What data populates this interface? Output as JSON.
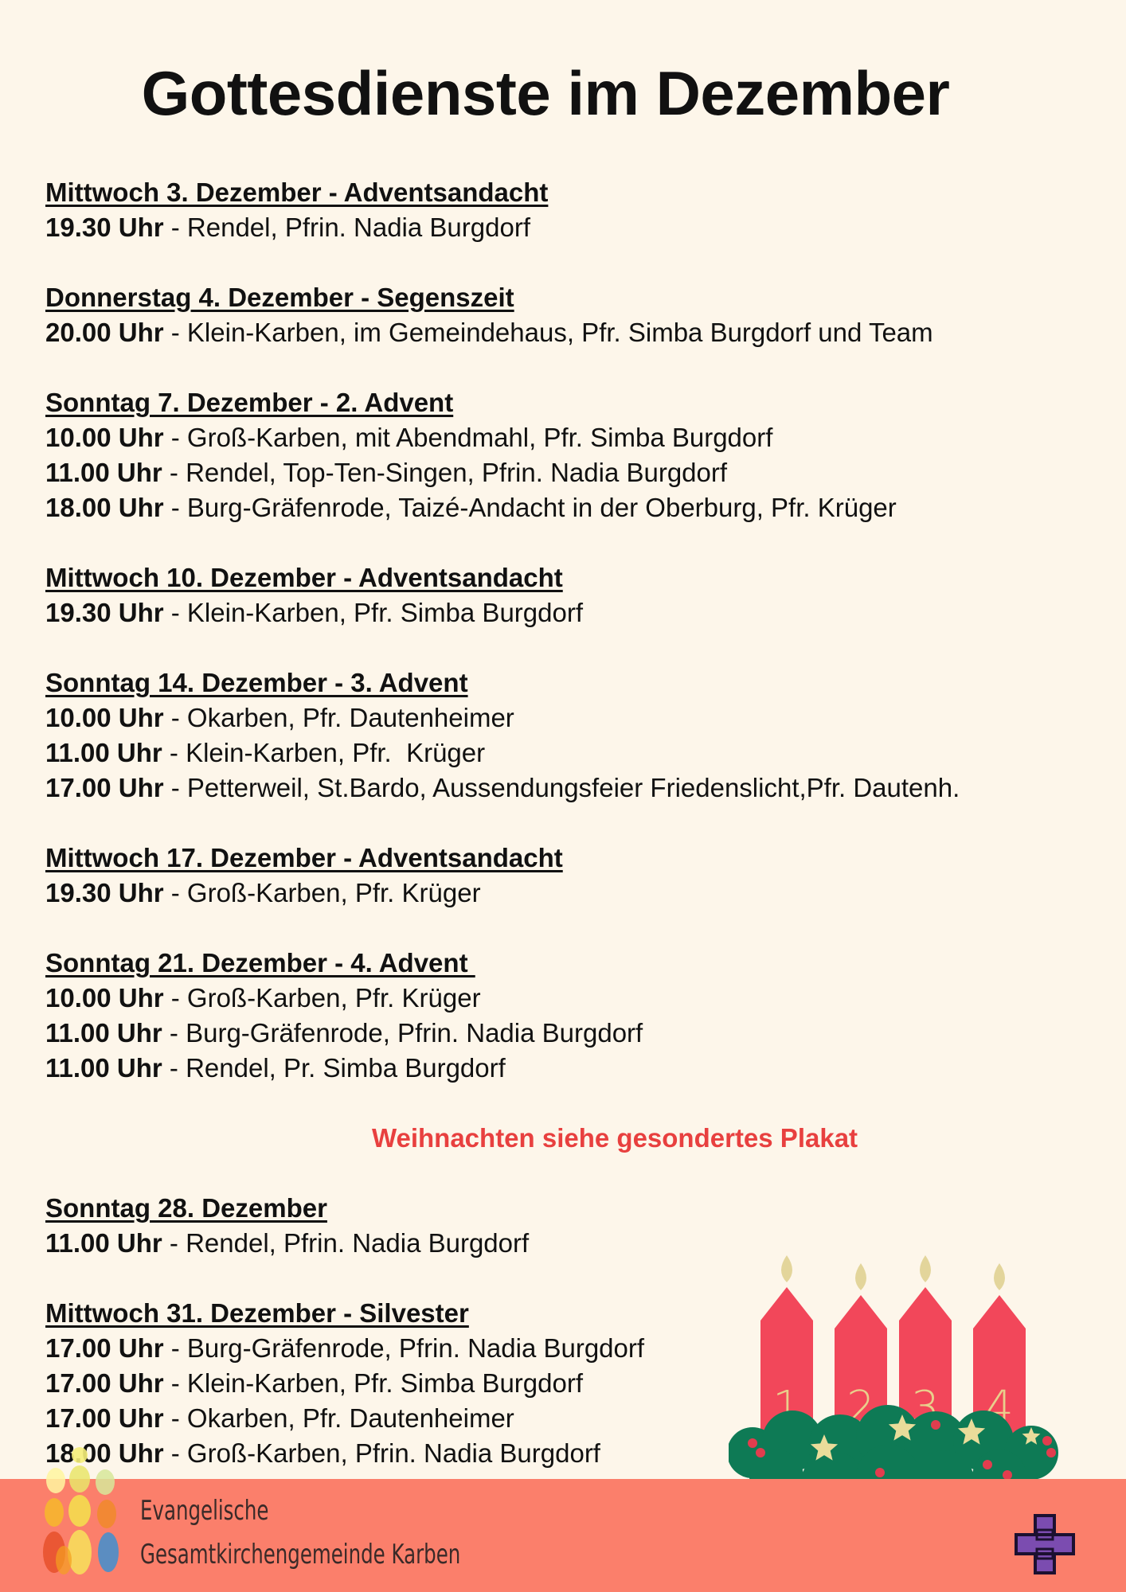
{
  "title": "Gottesdienste im Dezember",
  "sections": [
    {
      "heading": "Mittwoch 3. Dezember - Adventsandacht",
      "services": [
        {
          "time": "19.30 Uhr",
          "details": " - Rendel, Pfrin. Nadia Burgdorf"
        }
      ]
    },
    {
      "heading": "Donnerstag 4. Dezember - Segenszeit",
      "services": [
        {
          "time": "20.00 Uhr",
          "details": " - Klein-Karben, im Gemeindehaus, Pfr. Simba Burgdorf und Team"
        }
      ]
    },
    {
      "heading": "Sonntag 7. Dezember - 2. Advent",
      "services": [
        {
          "time": "10.00 Uhr",
          "details": " - Groß-Karben, mit Abendmahl, Pfr. Simba Burgdorf"
        },
        {
          "time": "11.00 Uhr",
          "details": " - Rendel, Top-Ten-Singen, Pfrin. Nadia Burgdorf"
        },
        {
          "time": "18.00 Uhr",
          "details": " - Burg-Gräfenrode, Taizé-Andacht in der Oberburg, Pfr. Krüger"
        }
      ]
    },
    {
      "heading": "Mittwoch 10. Dezember - Adventsandacht",
      "services": [
        {
          "time": "19.30 Uhr",
          "details": " - Klein-Karben, Pfr. Simba Burgdorf"
        }
      ]
    },
    {
      "heading": "Sonntag 14. Dezember - 3. Advent",
      "services": [
        {
          "time": "10.00 Uhr",
          "details": " - Okarben, Pfr. Dautenheimer"
        },
        {
          "time": "11.00 Uhr",
          "details": " - Klein-Karben, Pfr.  Krüger"
        },
        {
          "time": "17.00 Uhr",
          "details": " - Petterweil, St.Bardo, Aussendungsfeier Friedenslicht,Pfr. Dautenh."
        }
      ]
    },
    {
      "heading": "Mittwoch 17. Dezember - Adventsandacht",
      "services": [
        {
          "time": "19.30 Uhr",
          "details": " - Groß-Karben, Pfr. Krüger"
        }
      ]
    },
    {
      "heading": "Sonntag 21. Dezember - 4. Advent ",
      "services": [
        {
          "time": "10.00 Uhr",
          "details": " - Groß-Karben, Pfr. Krüger"
        },
        {
          "time": "11.00 Uhr",
          "details": " - Burg-Gräfenrode, Pfrin. Nadia Burgdorf"
        },
        {
          "time": "11.00 Uhr",
          "details": " - Rendel, Pr. Simba Burgdorf"
        }
      ]
    },
    {
      "heading": "Sonntag 28. Dezember",
      "services": [
        {
          "time": "11.00 Uhr",
          "details": " - Rendel, Pfrin. Nadia Burgdorf"
        }
      ]
    },
    {
      "heading": "Mittwoch 31. Dezember - Silvester",
      "services": [
        {
          "time": "17.00 Uhr",
          "details": " - Burg-Gräfenrode, Pfrin. Nadia Burgdorf"
        },
        {
          "time": "17.00 Uhr",
          "details": " - Klein-Karben, Pfr. Simba Burgdorf"
        },
        {
          "time": "17.00 Uhr",
          "details": " - Okarben, Pfr. Dautenheimer"
        },
        {
          "time": "18.00 Uhr",
          "details": " - Groß-Karben, Pfrin. Nadia Burgdorf"
        }
      ]
    }
  ],
  "notice": "Weihnachten siehe gesondertes Plakat",
  "candles": [
    "1",
    "2",
    "3",
    "4"
  ],
  "footer": {
    "org_line1": "Evangelische",
    "org_line2": "Gesamtkirchengemeinde Karben"
  },
  "colors": {
    "background": "#fdf6ea",
    "footer": "#fb7f6b",
    "notice": "#e8403f",
    "candle": "#f2475a",
    "wreath": "#0e7a55",
    "cross": "#6a3fa0"
  }
}
